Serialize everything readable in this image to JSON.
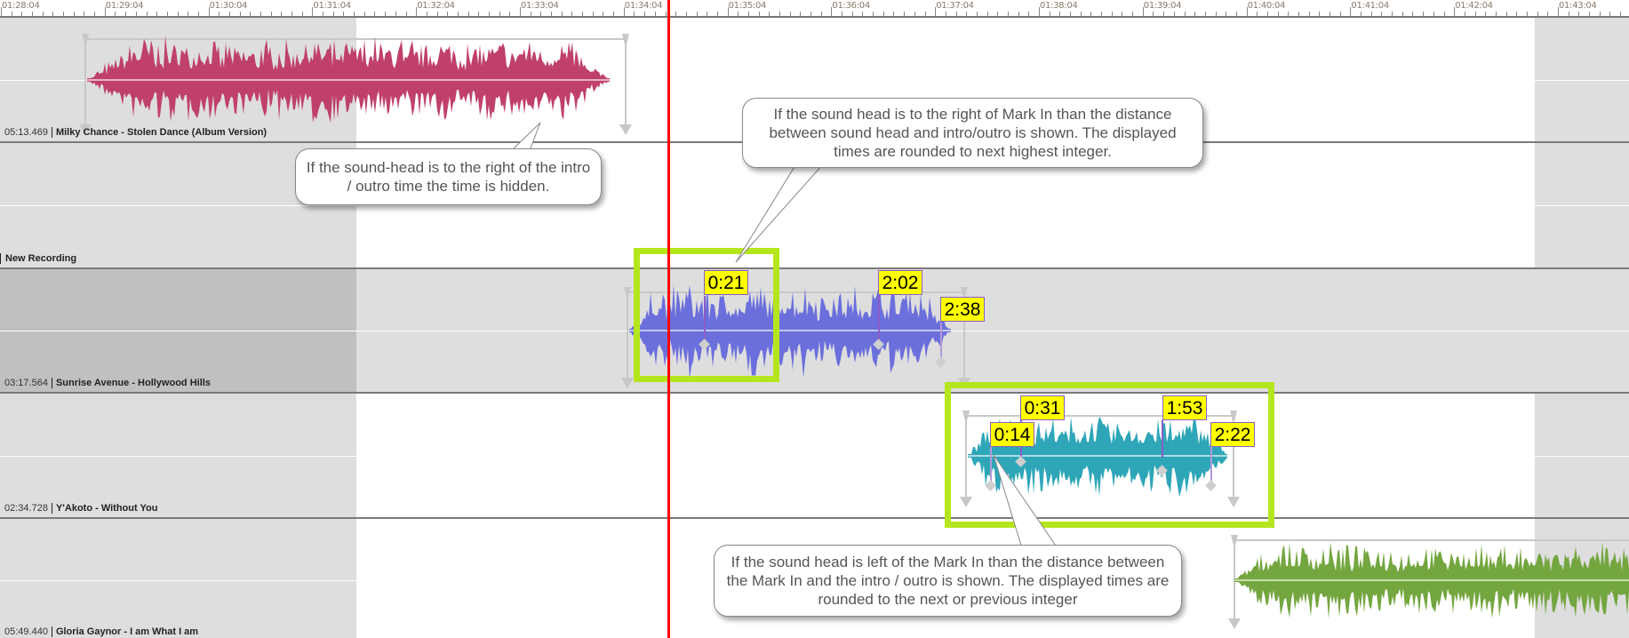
{
  "ruler": {
    "labels": [
      "01:28:04",
      "01:29:04",
      "01:30:04",
      "01:31:04",
      "01:32:04",
      "01:33:04",
      "01:34:04",
      "01:35:04",
      "01:36:04",
      "01:37:04",
      "01:38:04",
      "01:39:04",
      "01:40:04",
      "01:41:04",
      "01:42:04",
      "01:43:04"
    ]
  },
  "tracks": [
    {
      "time": "05:13.469",
      "title": "Milky Chance - Stolen Dance (Album Version)",
      "color": "#c0406c"
    },
    {
      "time": "",
      "title": "New Recording",
      "color": ""
    },
    {
      "time": "03:17.564",
      "title": "Sunrise Avenue - Hollywood Hills",
      "color": "#6b6fdc"
    },
    {
      "time": "02:34.728",
      "title": "Y'Akoto - Without You",
      "color": "#2ea6b8"
    },
    {
      "time": "05:49.440",
      "title": "Gloria Gaynor - I am What I am",
      "color": "#74a640"
    }
  ],
  "markers": {
    "sunrise": [
      "0:21",
      "2:02",
      "2:38"
    ],
    "yakoto": [
      "0:14",
      "0:31",
      "1:53",
      "2:22"
    ]
  },
  "callouts": [
    "If the sound-head is to the right of the intro / outro time the time is hidden.",
    "If the sound head is to the right of Mark In than the distance between sound head and intro/outro is shown. The displayed times are rounded to next highest integer.",
    "If the sound head is left of the Mark In than the distance between the Mark In and the intro / outro is shown. The displayed times are rounded to the next or previous integer"
  ],
  "colors": {
    "playhead": "#ff0000",
    "highlight": "#b5e61d",
    "marker_label_bg": "#ffff00",
    "marker_line": "#8a5ec8"
  }
}
